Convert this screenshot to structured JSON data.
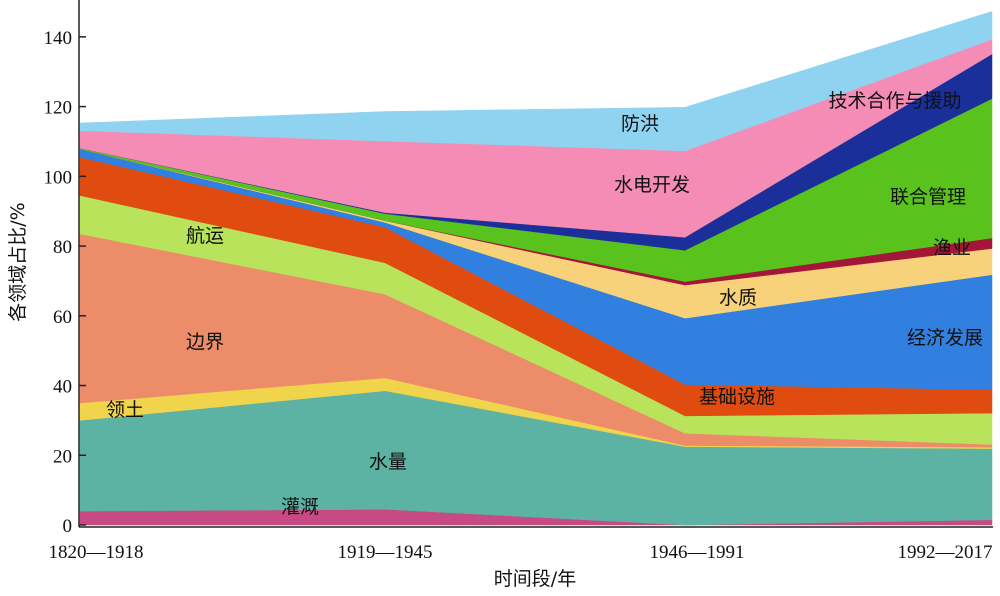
{
  "chart_data": {
    "type": "area",
    "stacked": true,
    "xlabel": "时间段/年",
    "ylabel": "各领域占比/%",
    "categories": [
      "1820—1918",
      "1919—1945",
      "1946—1991",
      "1992—2017"
    ],
    "ylim": [
      0,
      150
    ],
    "yticks": [
      "0",
      "20",
      "40",
      "60",
      "80",
      "100",
      "120",
      "140"
    ],
    "grid": false,
    "legend": "inline labels",
    "series": [
      {
        "name": "灌溉",
        "color": "#c84a85",
        "values": [
          4,
          4.5,
          0,
          1.5
        ]
      },
      {
        "name": "水量",
        "color": "#5cb3a3",
        "values": [
          26,
          34,
          22.5,
          20.4
        ]
      },
      {
        "name": "领土",
        "color": "#f0d44c",
        "values": [
          5,
          3.7,
          0.3,
          0.4
        ]
      },
      {
        "name": "边界",
        "color": "#ec8c68",
        "values": [
          48.5,
          24,
          3.5,
          0.8
        ]
      },
      {
        "name": "航运",
        "color": "#b8e35a",
        "values": [
          11,
          9,
          5,
          9
        ]
      },
      {
        "name": "基础设施",
        "color": "#e04b10",
        "values": [
          11,
          10.2,
          9,
          6.7
        ]
      },
      {
        "name": "水质",
        "color": "#317fdf",
        "values": [
          2.3,
          1.4,
          19,
          33
        ]
      },
      {
        "name": "经济发展",
        "color": "#f7d27a",
        "values": [
          0,
          0.5,
          9.5,
          7.5
        ]
      },
      {
        "name": "渔业",
        "color": "#a31638",
        "values": [
          0,
          0,
          1,
          3
        ]
      },
      {
        "name": "联合管理",
        "color": "#5ac21c",
        "values": [
          0.3,
          2,
          9,
          40
        ]
      },
      {
        "name": "技术合作与援助",
        "color": "#1a2f9a",
        "values": [
          0,
          0.3,
          3.7,
          12.8
        ]
      },
      {
        "name": "水电开发",
        "color": "#f58cb5",
        "values": [
          5,
          20.5,
          24.8,
          4.2
        ]
      },
      {
        "name": "防洪",
        "color": "#8fd3f1",
        "values": [
          2.2,
          8.5,
          12.5,
          8
        ]
      }
    ]
  }
}
